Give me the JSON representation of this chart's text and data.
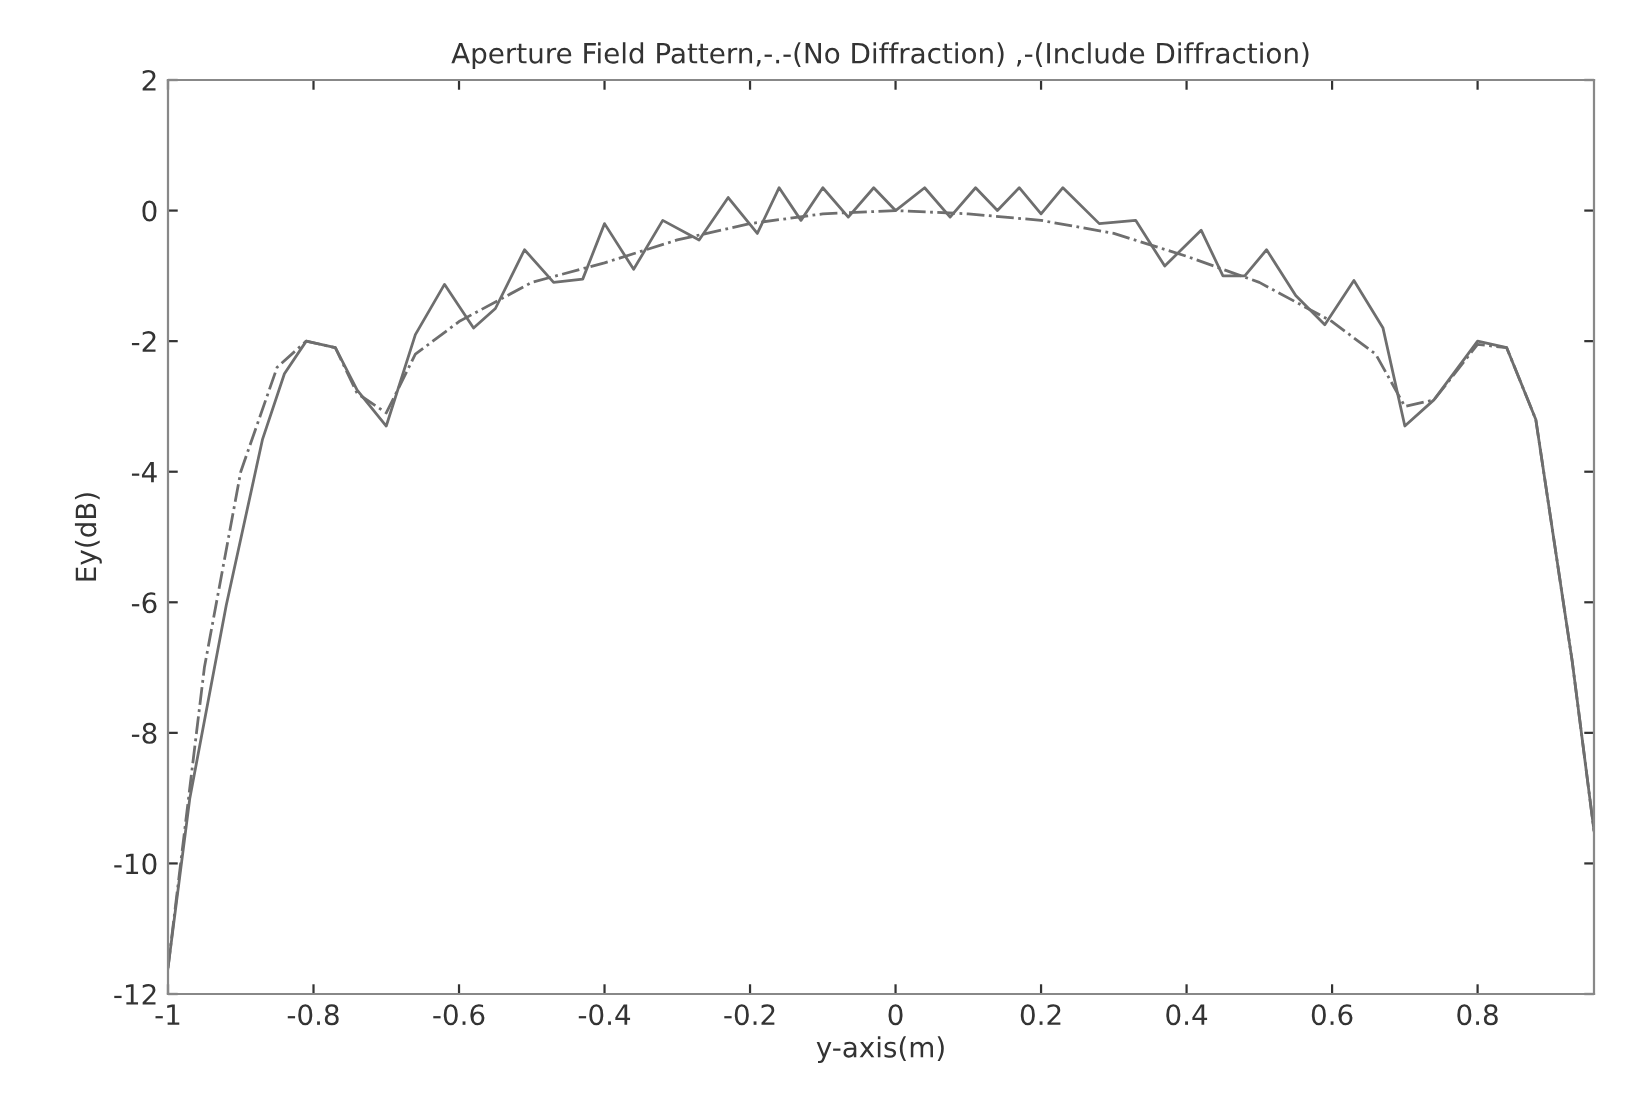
{
  "chart_data": {
    "type": "line",
    "title": "Aperture Field Pattern,-.-(No Diffraction) ,-(Include Diffraction)",
    "xlabel": "y-axis(m)",
    "ylabel": "Ey(dB)",
    "xlim": [
      -1,
      0.96
    ],
    "xticks": [
      -1,
      -0.8,
      -0.6,
      -0.4,
      -0.2,
      0,
      0.2,
      0.4,
      0.6,
      0.8
    ],
    "ylim": [
      -12,
      2
    ],
    "yticks": [
      -12,
      -10,
      -8,
      -6,
      -4,
      -2,
      0,
      2
    ],
    "grid": false,
    "series": [
      {
        "color": "#6e6e6e",
        "line_style": "dashed",
        "x": [
          -1,
          -0.95,
          -0.9,
          -0.85,
          -0.81,
          -0.77,
          -0.74,
          -0.7,
          -0.66,
          -0.6,
          -0.5,
          -0.4,
          -0.3,
          -0.2,
          -0.1,
          0,
          0.1,
          0.2,
          0.3,
          0.4,
          0.5,
          0.6,
          0.66,
          0.7,
          0.74,
          0.8,
          0.84,
          0.88,
          0.93,
          0.96
        ],
        "values": [
          -11.6,
          -7,
          -4,
          -2.4,
          -2.0,
          -2.1,
          -2.8,
          -3.1,
          -2.2,
          -1.7,
          -1.1,
          -0.8,
          -0.45,
          -0.2,
          -0.05,
          0,
          -0.05,
          -0.15,
          -0.35,
          -0.7,
          -1.1,
          -1.7,
          -2.2,
          -3.0,
          -2.9,
          -2.05,
          -2.1,
          -3.2,
          -6.9,
          -9.5
        ]
      },
      {
        "color": "#6e6e6e",
        "line_style": "solid",
        "x": [
          -1,
          -0.97,
          -0.92,
          -0.87,
          -0.84,
          -0.81,
          -0.77,
          -0.74,
          -0.7,
          -0.66,
          -0.62,
          -0.58,
          -0.55,
          -0.51,
          -0.47,
          -0.43,
          -0.4,
          -0.36,
          -0.32,
          -0.27,
          -0.23,
          -0.19,
          -0.16,
          -0.13,
          -0.1,
          -0.065,
          -0.03,
          0,
          0.04,
          0.075,
          0.11,
          0.14,
          0.17,
          0.2,
          0.23,
          0.28,
          0.33,
          0.37,
          0.42,
          0.45,
          0.48,
          0.51,
          0.55,
          0.59,
          0.63,
          0.67,
          0.7,
          0.74,
          0.8,
          0.84,
          0.88,
          0.93,
          0.96
        ],
        "values": [
          -11.6,
          -9,
          -6.05,
          -3.5,
          -2.5,
          -2.0,
          -2.1,
          -2.75,
          -3.3,
          -1.9,
          -1.13,
          -1.8,
          -1.5,
          -0.6,
          -1.1,
          -1.05,
          -0.2,
          -0.9,
          -0.15,
          -0.45,
          0.2,
          -0.35,
          0.35,
          -0.15,
          0.35,
          -0.1,
          0.35,
          0.0,
          0.35,
          -0.1,
          0.35,
          0.0,
          0.35,
          -0.05,
          0.35,
          -0.2,
          -0.15,
          -0.85,
          -0.3,
          -1.0,
          -1.0,
          -0.6,
          -1.3,
          -1.75,
          -1.07,
          -1.8,
          -3.3,
          -2.9,
          -2.0,
          -2.1,
          -3.2,
          -6.9,
          -9.5
        ]
      }
    ]
  }
}
